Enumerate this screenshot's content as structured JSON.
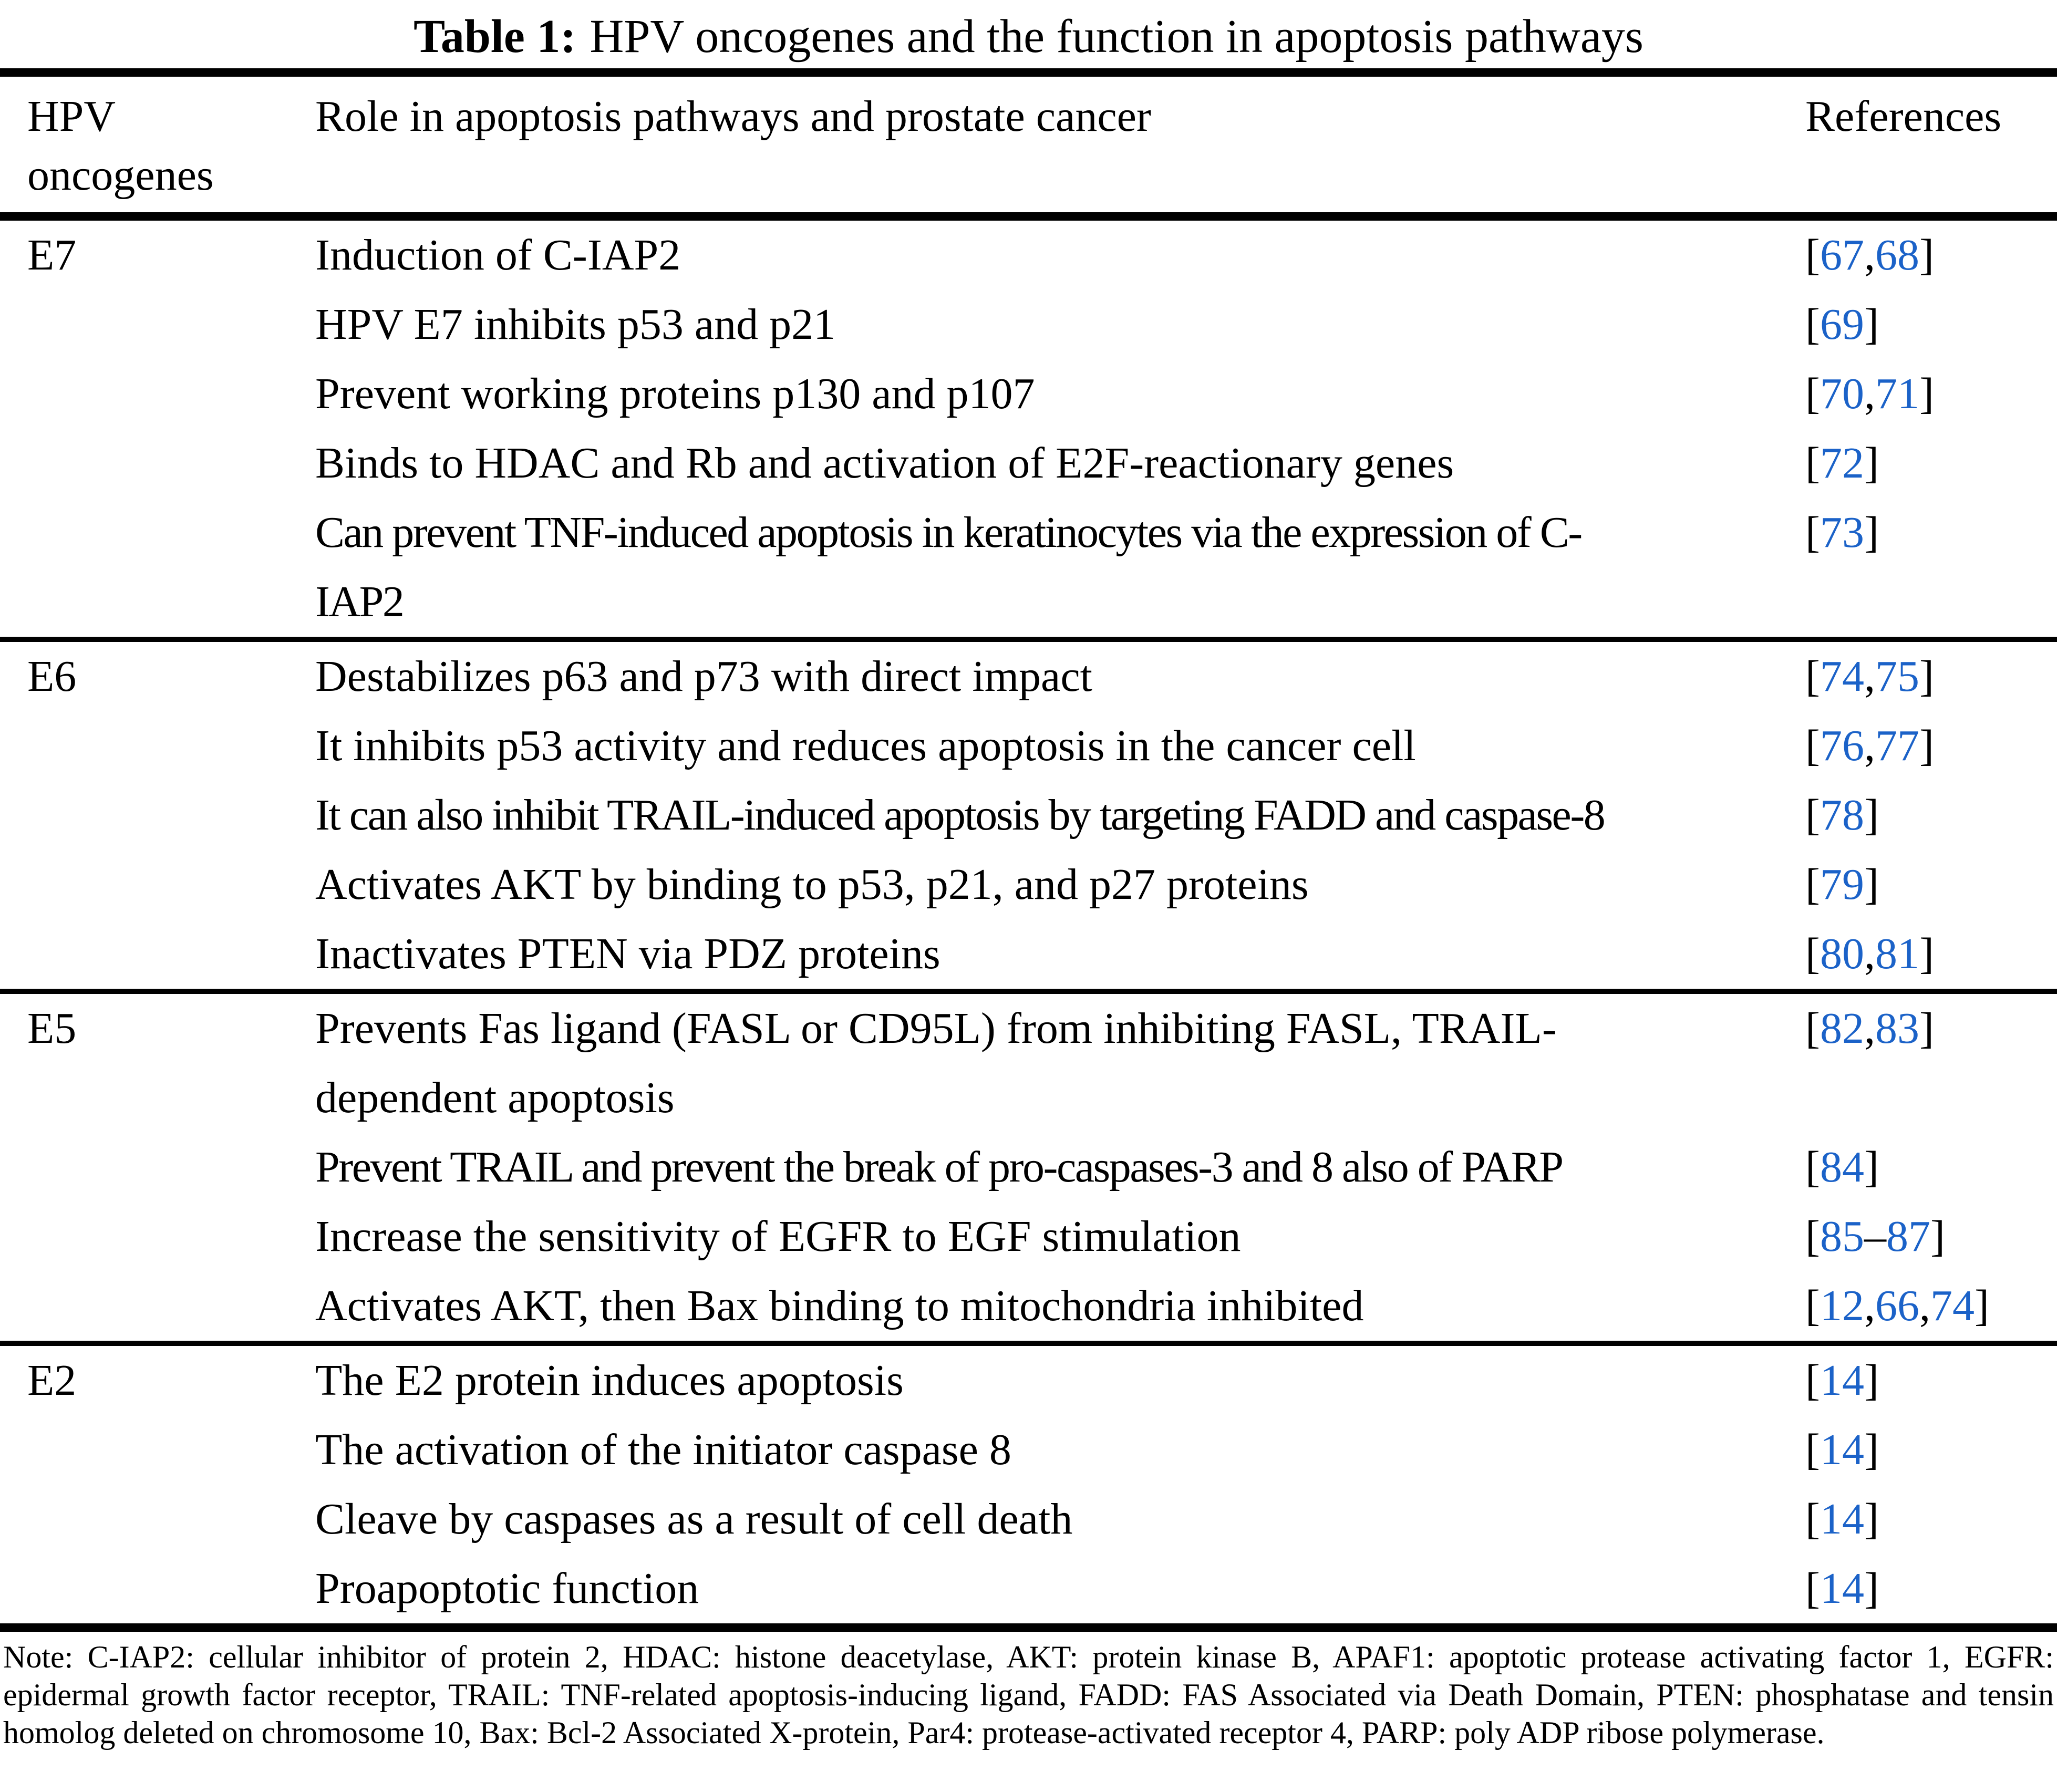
{
  "title": {
    "label": "Table 1:",
    "text": "HPV oncogenes and the function in apoptosis pathways"
  },
  "header": {
    "col1": "HPV oncogenes",
    "col2": "Role in apoptosis pathways and prostate cancer",
    "col3": "References"
  },
  "colors": {
    "reference_blue": "#1B62C8",
    "text_black": "#000000",
    "background": "#FFFFFF"
  },
  "sections": [
    {
      "oncogene": "E7",
      "rows": [
        {
          "lines": [
            "Induction of C-IAP2"
          ],
          "refs": "67,68"
        },
        {
          "lines": [
            "HPV E7 inhibits p53 and p21"
          ],
          "refs": "69"
        },
        {
          "lines": [
            "Prevent working proteins p130 and p107"
          ],
          "refs": "70,71"
        },
        {
          "lines": [
            "Binds to HDAC and Rb and activation of E2F-reactionary genes"
          ],
          "refs": "72"
        },
        {
          "lines": [
            "Can prevent TNF-induced apoptosis in keratinocytes via the expression of C-",
            "IAP2"
          ],
          "refs": "73"
        }
      ]
    },
    {
      "oncogene": "E6",
      "rows": [
        {
          "lines": [
            "Destabilizes p63 and p73 with direct impact"
          ],
          "refs": "74,75"
        },
        {
          "lines": [
            "It inhibits p53 activity and reduces apoptosis in the cancer cell"
          ],
          "refs": "76,77"
        },
        {
          "lines": [
            "It can also inhibit TRAIL-induced apoptosis by targeting FADD and caspase-8"
          ],
          "refs": "78"
        },
        {
          "lines": [
            "Activates AKT by binding to p53, p21, and p27 proteins"
          ],
          "refs": "79"
        },
        {
          "lines": [
            "Inactivates PTEN via PDZ proteins"
          ],
          "refs": "80,81"
        }
      ]
    },
    {
      "oncogene": "E5",
      "rows": [
        {
          "lines": [
            "Prevents Fas ligand (FASL or CD95L) from inhibiting FASL, TRAIL-",
            "dependent apoptosis"
          ],
          "refs": "82,83"
        },
        {
          "lines": [
            "Prevent TRAIL and prevent the break of pro-caspases-3 and 8 also of PARP"
          ],
          "refs": "84"
        },
        {
          "lines": [
            "Increase the sensitivity of EGFR to EGF stimulation"
          ],
          "refs": "85–87"
        },
        {
          "lines": [
            "Activates AKT, then Bax binding to mitochondria inhibited"
          ],
          "refs": "12,66,74"
        }
      ]
    },
    {
      "oncogene": "E2",
      "rows": [
        {
          "lines": [
            "The E2 protein induces apoptosis"
          ],
          "refs": "14"
        },
        {
          "lines": [
            "The activation of the initiator caspase 8"
          ],
          "refs": "14"
        },
        {
          "lines": [
            "Cleave by caspases as a result of cell death"
          ],
          "refs": "14"
        },
        {
          "lines": [
            "Proapoptotic function"
          ],
          "refs": "14"
        }
      ]
    }
  ],
  "footnote": "Note: C-IAP2: cellular inhibitor of protein 2, HDAC: histone deacetylase, AKT: protein kinase B, APAF1: apoptotic protease activating factor 1, EGFR: epidermal growth factor receptor, TRAIL: TNF-related apoptosis-inducing ligand, FADD: FAS Associated via Death Domain, PTEN: phosphatase and tensin homolog deleted on chromosome 10, Bax: Bcl-2 Associated X-protein, Par4: protease-activated receptor 4, PARP: poly ADP ribose polymerase."
}
